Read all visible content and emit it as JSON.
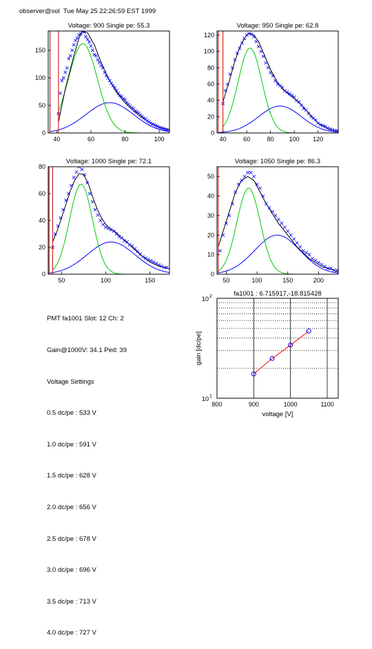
{
  "header": {
    "user_host": "observer@sol",
    "timestamp": "Tue May 25 22:26:59 EST 1999"
  },
  "colors": {
    "data_points": "#0000ff",
    "total_fit": "#000000",
    "signal_fit": "#00c800",
    "background_fit": "#0000ff",
    "cut_lines": "#cc0000",
    "gain_line": "#ff0000",
    "gain_points": "#0000ff"
  },
  "info": {
    "pmt_line": "PMT fa1001 Slot: 12 Ch: 2",
    "gain_line": "Gain@1000V: 34.1 Ped: 39",
    "settings_title": "Voltage Settings",
    "settings": [
      "0.5 dc/pe : 533 V",
      "1.0 dc/pe : 591 V",
      "1.5 dc/pe : 628 V",
      "2.0 dc/pe : 656 V",
      "2.5 dc/pe : 678 V",
      "3.0 dc/pe : 696 V",
      "3.5 dc/pe : 713 V",
      "4.0 dc/pe : 727 V"
    ]
  },
  "chart_data": [
    {
      "type": "scatter",
      "title": "Voltage: 900 Single pe: 55.3",
      "xlim": [
        35,
        106
      ],
      "ylim": [
        0,
        185
      ],
      "xticks": [
        40,
        60,
        80,
        100
      ],
      "yticks": [
        0,
        50,
        100,
        150
      ],
      "cuts": [
        36,
        41
      ],
      "total": {
        "x": [
          41,
          45,
          50,
          53,
          55,
          58,
          62,
          66,
          70,
          75,
          80,
          85,
          90,
          95,
          100,
          106
        ],
        "y": [
          20,
          80,
          140,
          172,
          184,
          182,
          160,
          128,
          100,
          74,
          55,
          40,
          28,
          18,
          11,
          6
        ]
      },
      "signal": {
        "mean": 55.3,
        "sigma": 8.5,
        "amp": 162,
        "range": [
          41,
          95
        ]
      },
      "background": {
        "mean": 71,
        "sigma": 14,
        "amp": 55,
        "range": [
          36,
          106
        ]
      },
      "points": {
        "x": [
          41,
          42,
          43,
          44,
          45,
          46,
          47,
          48,
          49,
          50,
          51,
          52,
          53,
          54,
          55,
          56,
          57,
          58,
          59,
          60,
          61,
          62,
          63,
          64,
          65,
          66,
          67,
          68,
          69,
          70,
          71,
          72,
          73,
          74,
          75,
          76,
          77,
          78,
          79,
          80,
          81,
          82,
          83,
          84,
          85,
          86,
          87,
          88,
          89,
          90,
          91,
          92,
          93,
          94,
          95,
          96,
          97,
          98,
          99,
          100,
          101,
          102,
          103,
          104,
          105
        ],
        "y": [
          35,
          72,
          95,
          100,
          110,
          118,
          135,
          140,
          150,
          160,
          168,
          172,
          178,
          180,
          185,
          183,
          175,
          170,
          165,
          158,
          150,
          142,
          140,
          133,
          128,
          122,
          118,
          110,
          104,
          100,
          95,
          90,
          86,
          82,
          77,
          72,
          68,
          66,
          62,
          60,
          55,
          52,
          49,
          46,
          44,
          40,
          38,
          36,
          33,
          30,
          27,
          25,
          22,
          20,
          18,
          16,
          15,
          13,
          12,
          10,
          9,
          8,
          7,
          6,
          5
        ]
      }
    },
    {
      "type": "scatter",
      "title": "Voltage: 950 Single pe: 62.8",
      "xlim": [
        35,
        137
      ],
      "ylim": [
        0,
        125
      ],
      "xticks": [
        40,
        60,
        80,
        100,
        120
      ],
      "yticks": [
        0,
        20,
        40,
        60,
        80,
        100,
        120
      ],
      "cuts": [
        36,
        40
      ],
      "total": {
        "x": [
          40,
          45,
          50,
          55,
          60,
          63,
          66,
          70,
          75,
          80,
          85,
          90,
          95,
          100,
          105,
          110,
          115,
          120,
          125,
          130,
          137
        ],
        "y": [
          38,
          62,
          88,
          108,
          120,
          122,
          120,
          112,
          95,
          78,
          64,
          54,
          48,
          42,
          36,
          28,
          20,
          12,
          8,
          4,
          2
        ]
      },
      "signal": {
        "mean": 62.8,
        "sigma": 10,
        "amp": 104,
        "range": [
          40,
          110
        ]
      },
      "background": {
        "mean": 88,
        "sigma": 18,
        "amp": 33,
        "range": [
          36,
          137
        ]
      },
      "points": {
        "x": [
          40,
          42,
          44,
          46,
          48,
          50,
          52,
          54,
          56,
          58,
          60,
          62,
          64,
          66,
          68,
          70,
          72,
          74,
          76,
          78,
          80,
          82,
          84,
          86,
          88,
          90,
          92,
          94,
          96,
          98,
          100,
          102,
          104,
          106,
          108,
          110,
          112,
          114,
          116,
          118,
          120,
          122,
          124,
          126,
          128,
          130,
          132,
          134,
          136
        ],
        "y": [
          36,
          52,
          60,
          72,
          80,
          90,
          98,
          104,
          110,
          116,
          120,
          122,
          121,
          118,
          112,
          106,
          100,
          94,
          86,
          80,
          74,
          70,
          64,
          60,
          58,
          56,
          52,
          50,
          48,
          46,
          44,
          40,
          38,
          34,
          30,
          28,
          24,
          20,
          18,
          16,
          12,
          10,
          9,
          8,
          6,
          5,
          4,
          3,
          3
        ]
      }
    },
    {
      "type": "scatter",
      "title": "Voltage: 1000 Single pe: 72.1",
      "xlim": [
        35,
        172
      ],
      "ylim": [
        0,
        80
      ],
      "xticks": [
        50,
        100,
        150
      ],
      "yticks": [
        0,
        20,
        40,
        60,
        80
      ],
      "cuts": [
        36,
        40
      ],
      "total": {
        "x": [
          40,
          45,
          50,
          55,
          60,
          65,
          70,
          75,
          80,
          85,
          90,
          95,
          100,
          105,
          110,
          115,
          120,
          130,
          140,
          150,
          160,
          172
        ],
        "y": [
          24,
          32,
          42,
          52,
          62,
          70,
          75,
          74,
          68,
          58,
          49,
          42,
          37,
          34,
          32,
          29,
          26,
          20,
          14,
          9,
          6,
          4
        ]
      },
      "signal": {
        "mean": 72.1,
        "sigma": 13,
        "amp": 67,
        "range": [
          40,
          130
        ]
      },
      "background": {
        "mean": 106,
        "sigma": 27,
        "amp": 24,
        "range": [
          36,
          172
        ]
      },
      "points": {
        "x": [
          40,
          43,
          46,
          49,
          52,
          55,
          58,
          61,
          64,
          67,
          70,
          73,
          76,
          79,
          82,
          85,
          88,
          91,
          94,
          97,
          100,
          103,
          106,
          109,
          112,
          115,
          118,
          121,
          124,
          127,
          130,
          133,
          136,
          139,
          142,
          145,
          148,
          151,
          154,
          157,
          160,
          163,
          166,
          169
        ],
        "y": [
          20,
          30,
          36,
          42,
          48,
          55,
          60,
          66,
          72,
          76,
          80,
          78,
          74,
          68,
          60,
          54,
          48,
          44,
          40,
          37,
          35,
          34,
          33,
          32,
          30,
          28,
          27,
          25,
          24,
          22,
          21,
          19,
          17,
          15,
          13,
          12,
          11,
          10,
          9,
          8,
          7,
          6,
          5,
          5
        ]
      }
    },
    {
      "type": "scatter",
      "title": "Voltage: 1050 Single pe: 86.3",
      "xlim": [
        35,
        232
      ],
      "ylim": [
        0,
        55
      ],
      "xticks": [
        50,
        100,
        150,
        200
      ],
      "yticks": [
        0,
        10,
        20,
        30,
        40,
        50
      ],
      "cuts": [
        37
      ],
      "total": {
        "x": [
          37,
          45,
          55,
          65,
          75,
          85,
          95,
          105,
          115,
          125,
          135,
          145,
          155,
          165,
          175,
          185,
          195,
          205,
          215,
          225,
          232
        ],
        "y": [
          14,
          22,
          32,
          42,
          48,
          50,
          48,
          42,
          36,
          31,
          26,
          22,
          18,
          14,
          11,
          8,
          6,
          4,
          3,
          2,
          1
        ]
      },
      "signal": {
        "mean": 86.3,
        "sigma": 19,
        "amp": 44,
        "range": [
          37,
          170
        ]
      },
      "background": {
        "mean": 133,
        "sigma": 37,
        "amp": 20,
        "range": [
          37,
          232
        ]
      },
      "points": {
        "x": [
          40,
          45,
          50,
          55,
          60,
          65,
          70,
          75,
          80,
          85,
          90,
          95,
          100,
          105,
          110,
          115,
          120,
          125,
          130,
          135,
          140,
          145,
          150,
          155,
          160,
          165,
          170,
          175,
          180,
          185,
          190,
          195,
          200,
          205,
          210,
          215,
          220,
          225,
          230
        ],
        "y": [
          12,
          20,
          26,
          30,
          36,
          42,
          46,
          48,
          50,
          52,
          52,
          50,
          46,
          44,
          40,
          36,
          34,
          32,
          30,
          28,
          26,
          24,
          22,
          20,
          18,
          16,
          14,
          12,
          11,
          10,
          8,
          7,
          6,
          5,
          4,
          3,
          3,
          2,
          2
        ]
      }
    },
    {
      "type": "line",
      "title": "fa1001 : 6.715917,-18.815428",
      "xlabel": "voltage [V]",
      "ylabel": "gain [dc/pe]",
      "xlim": [
        800,
        1130
      ],
      "ylim": [
        10,
        100
      ],
      "yscale": "log",
      "xticks": [
        800,
        900,
        1000,
        1100
      ],
      "ytick_labels": [
        {
          "base": "10",
          "exp": "1"
        },
        {
          "base": "10",
          "exp": "2"
        }
      ],
      "grid": true,
      "series": [
        {
          "x": [
            900,
            950,
            1000,
            1050
          ],
          "y": [
            17.5,
            25,
            34.1,
            47
          ]
        }
      ]
    }
  ]
}
